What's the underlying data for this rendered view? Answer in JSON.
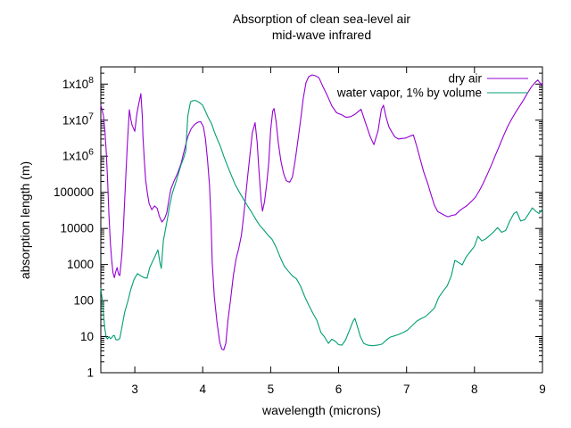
{
  "title": {
    "line1": "Absorption of clean sea-level air",
    "line2": "mid-wave infrared"
  },
  "x_axis": {
    "label": "wavelength (microns)",
    "tick_labels": [
      "3",
      "4",
      "5",
      "6",
      "7",
      "8",
      "9"
    ],
    "tick_values": [
      3,
      4,
      5,
      6,
      7,
      8,
      9
    ]
  },
  "y_axis": {
    "label": "absorption length (m)",
    "tick_labels": [
      "1",
      "10",
      "100",
      "1000",
      "10000",
      "100000",
      "1x10^6",
      "1x10^7",
      "1x10^8"
    ],
    "tick_values": [
      1,
      10,
      100,
      1000,
      10000,
      100000,
      1000000.0,
      10000000.0,
      100000000.0
    ]
  },
  "legend": {
    "position": "top-right",
    "entries": [
      "dry air",
      "water vapor, 1% by volume"
    ]
  },
  "colors": {
    "dry_air": "#9400D3",
    "water_vapor": "#009E73",
    "axis": "#000000",
    "background": "#FFFFFF"
  },
  "chart_data": {
    "type": "line",
    "title": "Absorption of clean sea-level air — mid-wave infrared",
    "xlabel": "wavelength (microns)",
    "ylabel": "absorption length (m)",
    "xlim": [
      2.5,
      9
    ],
    "ylim": [
      1,
      300000000.0
    ],
    "yscale": "log",
    "grid": false,
    "legend_position": "top-right",
    "series": [
      {
        "name": "dry air",
        "color": "#9400D3",
        "points": [
          [
            2.5,
            26000000.0
          ],
          [
            2.52,
            19000000.0
          ],
          [
            2.54,
            13000000.0
          ],
          [
            2.56,
            5000000.0
          ],
          [
            2.58,
            1300000.0
          ],
          [
            2.6,
            220000.0
          ],
          [
            2.62,
            24000.0
          ],
          [
            2.64,
            4000
          ],
          [
            2.66,
            1300
          ],
          [
            2.68,
            580
          ],
          [
            2.7,
            430
          ],
          [
            2.72,
            640
          ],
          [
            2.74,
            820
          ],
          [
            2.76,
            540
          ],
          [
            2.78,
            490
          ],
          [
            2.81,
            1900
          ],
          [
            2.83,
            8000
          ],
          [
            2.85,
            58000.0
          ],
          [
            2.87,
            350000.0
          ],
          [
            2.89,
            2100000.0
          ],
          [
            2.92,
            19500000.0
          ],
          [
            2.94,
            11000000.0
          ],
          [
            2.96,
            7300000.0
          ],
          [
            3.0,
            4900000.0
          ],
          [
            3.03,
            15000000.0
          ],
          [
            3.06,
            29000000.0
          ],
          [
            3.09,
            54000000.0
          ],
          [
            3.11,
            13000000.0
          ],
          [
            3.12,
            3600000.0
          ],
          [
            3.14,
            820000.0
          ],
          [
            3.16,
            210000.0
          ],
          [
            3.19,
            85000.0
          ],
          [
            3.21,
            49000.0
          ],
          [
            3.25,
            33000.0
          ],
          [
            3.29,
            42000.0
          ],
          [
            3.33,
            36000.0
          ],
          [
            3.36,
            22000.0
          ],
          [
            3.4,
            15000.0
          ],
          [
            3.44,
            19000.0
          ],
          [
            3.47,
            27000.0
          ],
          [
            3.5,
            60000.0
          ],
          [
            3.53,
            120000.0
          ],
          [
            3.58,
            210000.0
          ],
          [
            3.63,
            340000.0
          ],
          [
            3.68,
            620000.0
          ],
          [
            3.73,
            1500000.0
          ],
          [
            3.78,
            3500000.0
          ],
          [
            3.83,
            5800000.0
          ],
          [
            3.88,
            7600000.0
          ],
          [
            3.93,
            8800000.0
          ],
          [
            3.97,
            9100000.0
          ],
          [
            4.01,
            6500000.0
          ],
          [
            4.04,
            3000000.0
          ],
          [
            4.07,
            800000.0
          ],
          [
            4.1,
            160000.0
          ],
          [
            4.12,
            20000.0
          ],
          [
            4.14,
            1100
          ],
          [
            4.17,
            130
          ],
          [
            4.21,
            25
          ],
          [
            4.25,
            7
          ],
          [
            4.28,
            4.5
          ],
          [
            4.31,
            4.3
          ],
          [
            4.34,
            6.5
          ],
          [
            4.37,
            27
          ],
          [
            4.41,
            110
          ],
          [
            4.45,
            480
          ],
          [
            4.49,
            1400
          ],
          [
            4.53,
            2800
          ],
          [
            4.57,
            6500
          ],
          [
            4.61,
            30000.0
          ],
          [
            4.65,
            170000.0
          ],
          [
            4.69,
            900000.0
          ],
          [
            4.73,
            4500000.0
          ],
          [
            4.77,
            8500000.0
          ],
          [
            4.8,
            2500000.0
          ],
          [
            4.83,
            350000.0
          ],
          [
            4.86,
            60000.0
          ],
          [
            4.88,
            30000.0
          ],
          [
            4.91,
            55000.0
          ],
          [
            4.94,
            160000.0
          ],
          [
            4.97,
            600000.0
          ],
          [
            5.0,
            5500000.0
          ],
          [
            5.03,
            18000000.0
          ],
          [
            5.05,
            21000000.0
          ],
          [
            5.08,
            9000000.0
          ],
          [
            5.11,
            2500000.0
          ],
          [
            5.15,
            750000.0
          ],
          [
            5.19,
            330000.0
          ],
          [
            5.23,
            210000.0
          ],
          [
            5.28,
            190000.0
          ],
          [
            5.32,
            270000.0
          ],
          [
            5.36,
            750000.0
          ],
          [
            5.4,
            2600000.0
          ],
          [
            5.44,
            10000000.0
          ],
          [
            5.48,
            40000000.0
          ],
          [
            5.52,
            110000000.0
          ],
          [
            5.56,
            160000000.0
          ],
          [
            5.61,
            180000000.0
          ],
          [
            5.66,
            170000000.0
          ],
          [
            5.71,
            150000000.0
          ],
          [
            5.77,
            85000000.0
          ],
          [
            5.84,
            45000000.0
          ],
          [
            5.9,
            25000000.0
          ],
          [
            5.97,
            16000000.0
          ],
          [
            6.05,
            14000000.0
          ],
          [
            6.11,
            12000000.0
          ],
          [
            6.18,
            12500000.0
          ],
          [
            6.25,
            15000000.0
          ],
          [
            6.33,
            20000000.0
          ],
          [
            6.4,
            8000000.0
          ],
          [
            6.47,
            3300000.0
          ],
          [
            6.52,
            2100000.0
          ],
          [
            6.58,
            5000000.0
          ],
          [
            6.63,
            20000000.0
          ],
          [
            6.66,
            26000000.0
          ],
          [
            6.7,
            12000000.0
          ],
          [
            6.74,
            6500000.0
          ],
          [
            6.78,
            4800000.0
          ],
          [
            6.83,
            3400000.0
          ],
          [
            6.88,
            3000000.0
          ],
          [
            6.93,
            3100000.0
          ],
          [
            6.99,
            3200000.0
          ],
          [
            7.05,
            3600000.0
          ],
          [
            7.1,
            3900000.0
          ],
          [
            7.15,
            1900000.0
          ],
          [
            7.2,
            850000.0
          ],
          [
            7.25,
            380000.0
          ],
          [
            7.31,
            180000.0
          ],
          [
            7.36,
            87000.0
          ],
          [
            7.41,
            44000.0
          ],
          [
            7.46,
            29000.0
          ],
          [
            7.51,
            26000.0
          ],
          [
            7.56,
            23000.0
          ],
          [
            7.61,
            21000.0
          ],
          [
            7.67,
            23000.0
          ],
          [
            7.72,
            24000.0
          ],
          [
            7.78,
            31000.0
          ],
          [
            7.83,
            36000.0
          ],
          [
            7.89,
            43000.0
          ],
          [
            7.95,
            55000.0
          ],
          [
            8.01,
            72000.0
          ],
          [
            8.07,
            110000.0
          ],
          [
            8.13,
            180000.0
          ],
          [
            8.19,
            320000.0
          ],
          [
            8.25,
            580000.0
          ],
          [
            8.31,
            1100000.0
          ],
          [
            8.37,
            2000000.0
          ],
          [
            8.43,
            3800000.0
          ],
          [
            8.49,
            6800000.0
          ],
          [
            8.55,
            11000000.0
          ],
          [
            8.61,
            17000000.0
          ],
          [
            8.66,
            24000000.0
          ],
          [
            8.72,
            36000000.0
          ],
          [
            8.78,
            56000000.0
          ],
          [
            8.84,
            85000000.0
          ],
          [
            8.89,
            110000000.0
          ],
          [
            8.93,
            130000000.0
          ],
          [
            8.96,
            110000000.0
          ],
          [
            8.98,
            95000000.0
          ],
          [
            9.0,
            110000000.0
          ]
        ]
      },
      {
        "name": "water vapor, 1% by volume",
        "color": "#009E73",
        "points": [
          [
            2.5,
            220
          ],
          [
            2.52,
            110
          ],
          [
            2.54,
            42
          ],
          [
            2.56,
            16
          ],
          [
            2.58,
            9.5
          ],
          [
            2.6,
            8.7
          ],
          [
            2.62,
            10
          ],
          [
            2.64,
            8.8
          ],
          [
            2.66,
            9.3
          ],
          [
            2.68,
            10.5
          ],
          [
            2.7,
            10.8
          ],
          [
            2.72,
            8.3
          ],
          [
            2.75,
            8.1
          ],
          [
            2.78,
            9
          ],
          [
            2.81,
            18
          ],
          [
            2.85,
            47
          ],
          [
            2.9,
            100
          ],
          [
            2.94,
            200
          ],
          [
            2.99,
            390
          ],
          [
            3.04,
            560
          ],
          [
            3.09,
            480
          ],
          [
            3.14,
            430
          ],
          [
            3.18,
            420
          ],
          [
            3.22,
            820
          ],
          [
            3.27,
            1300
          ],
          [
            3.31,
            1900
          ],
          [
            3.34,
            2550
          ],
          [
            3.37,
            1100
          ],
          [
            3.39,
            780
          ],
          [
            3.42,
            4500
          ],
          [
            3.45,
            9000
          ],
          [
            3.48,
            18000.0
          ],
          [
            3.51,
            39000.0
          ],
          [
            3.55,
            92000.0
          ],
          [
            3.6,
            180000.0
          ],
          [
            3.64,
            320000.0
          ],
          [
            3.68,
            570000.0
          ],
          [
            3.72,
            900000.0
          ],
          [
            3.75,
            1400000.0
          ],
          [
            3.78,
            13000000.0
          ],
          [
            3.82,
            32000000.0
          ],
          [
            3.86,
            35000000.0
          ],
          [
            3.9,
            35000000.0
          ],
          [
            3.95,
            31000000.0
          ],
          [
            4.0,
            26000000.0
          ],
          [
            4.04,
            17500000.0
          ],
          [
            4.08,
            12000000.0
          ],
          [
            4.13,
            8000000.0
          ],
          [
            4.17,
            4800000.0
          ],
          [
            4.21,
            3100000.0
          ],
          [
            4.26,
            1900000.0
          ],
          [
            4.31,
            1000000.0
          ],
          [
            4.36,
            570000.0
          ],
          [
            4.42,
            300000.0
          ],
          [
            4.48,
            160000.0
          ],
          [
            4.54,
            100000.0
          ],
          [
            4.6,
            65000.0
          ],
          [
            4.66,
            42000.0
          ],
          [
            4.72,
            28000.0
          ],
          [
            4.78,
            18000.0
          ],
          [
            4.84,
            12000.0
          ],
          [
            4.9,
            9000
          ],
          [
            4.96,
            6500
          ],
          [
            5.02,
            5000
          ],
          [
            5.08,
            3000
          ],
          [
            5.14,
            1600
          ],
          [
            5.2,
            900
          ],
          [
            5.26,
            650
          ],
          [
            5.32,
            480
          ],
          [
            5.38,
            400
          ],
          [
            5.44,
            250
          ],
          [
            5.5,
            130
          ],
          [
            5.56,
            75
          ],
          [
            5.62,
            45
          ],
          [
            5.68,
            28
          ],
          [
            5.74,
            13
          ],
          [
            5.79,
            10
          ],
          [
            5.85,
            6.5
          ],
          [
            5.9,
            8.5
          ],
          [
            5.95,
            7.5
          ],
          [
            6.0,
            6
          ],
          [
            6.05,
            5.8
          ],
          [
            6.1,
            8
          ],
          [
            6.16,
            15
          ],
          [
            6.21,
            26
          ],
          [
            6.24,
            32
          ],
          [
            6.28,
            18
          ],
          [
            6.32,
            10
          ],
          [
            6.37,
            6.5
          ],
          [
            6.43,
            5.8
          ],
          [
            6.5,
            5.6
          ],
          [
            6.57,
            5.8
          ],
          [
            6.64,
            6.2
          ],
          [
            6.7,
            8
          ],
          [
            6.76,
            9.7
          ],
          [
            6.82,
            10.5
          ],
          [
            6.88,
            11.5
          ],
          [
            6.95,
            13
          ],
          [
            7.01,
            15
          ],
          [
            7.08,
            20
          ],
          [
            7.15,
            27
          ],
          [
            7.22,
            32
          ],
          [
            7.28,
            36
          ],
          [
            7.35,
            48
          ],
          [
            7.41,
            62
          ],
          [
            7.47,
            120
          ],
          [
            7.53,
            175
          ],
          [
            7.6,
            260
          ],
          [
            7.66,
            500
          ],
          [
            7.71,
            1300
          ],
          [
            7.76,
            1150
          ],
          [
            7.82,
            980
          ],
          [
            7.88,
            1650
          ],
          [
            7.94,
            2300
          ],
          [
            8.0,
            3200
          ],
          [
            8.05,
            6000
          ],
          [
            8.11,
            4500
          ],
          [
            8.17,
            5200
          ],
          [
            8.23,
            6500
          ],
          [
            8.28,
            8000
          ],
          [
            8.34,
            10500
          ],
          [
            8.4,
            7800
          ],
          [
            8.46,
            8800
          ],
          [
            8.52,
            16000.0
          ],
          [
            8.58,
            26000.0
          ],
          [
            8.62,
            29000.0
          ],
          [
            8.68,
            16000.0
          ],
          [
            8.74,
            17500.0
          ],
          [
            8.8,
            26000.0
          ],
          [
            8.85,
            37000.0
          ],
          [
            8.91,
            29000.0
          ],
          [
            8.95,
            26000.0
          ],
          [
            9.0,
            34000.0
          ]
        ]
      }
    ]
  }
}
